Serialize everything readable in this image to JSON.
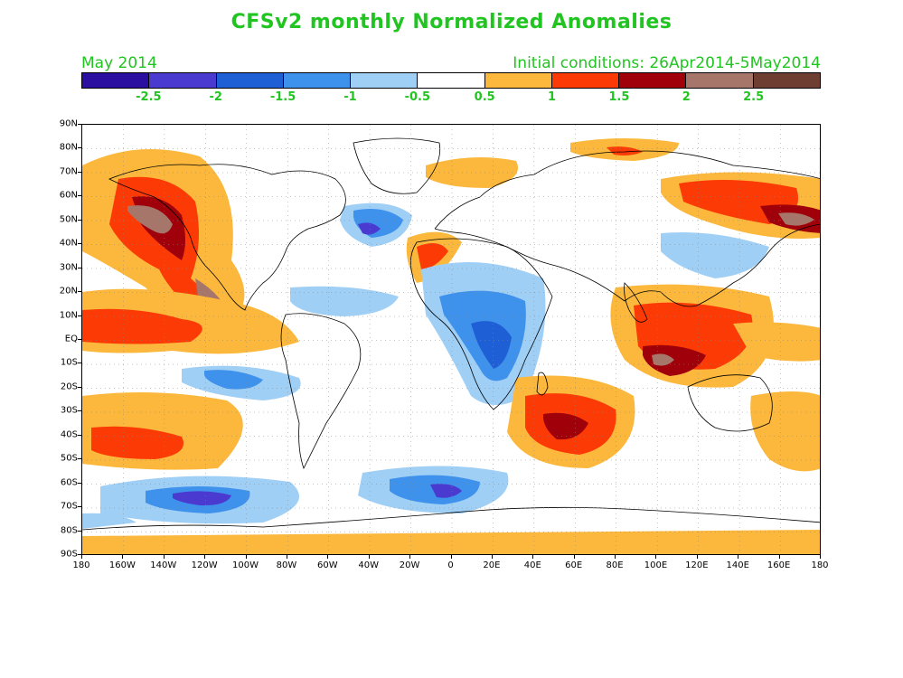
{
  "header": {
    "title": "CFSv2 monthly Normalized Anomalies",
    "month": "May 2014",
    "initial_conditions": "Initial conditions: 26Apr2014-5May2014"
  },
  "colorbar": {
    "colors": [
      "#2a0fa0",
      "#4a3ad0",
      "#1f5fd6",
      "#3f92ec",
      "#a0cff6",
      "#ffffff",
      "#fbb83c",
      "#fc3a06",
      "#a0000a",
      "#a6766a",
      "#6e3e33"
    ],
    "labels": [
      "-2.5",
      "-2",
      "-1.5",
      "-1",
      "-0.5",
      "0.5",
      "1",
      "1.5",
      "2",
      "2.5"
    ]
  },
  "axes": {
    "lat_labels": [
      "90N",
      "80N",
      "70N",
      "60N",
      "50N",
      "40N",
      "30N",
      "20N",
      "10N",
      "EQ",
      "10S",
      "20S",
      "30S",
      "40S",
      "50S",
      "60S",
      "70S",
      "80S",
      "90S"
    ],
    "lon_labels": [
      "180",
      "160W",
      "140W",
      "120W",
      "100W",
      "80W",
      "60W",
      "40W",
      "20W",
      "0",
      "20E",
      "40E",
      "60E",
      "80E",
      "100E",
      "120E",
      "140E",
      "160E",
      "180"
    ]
  }
}
